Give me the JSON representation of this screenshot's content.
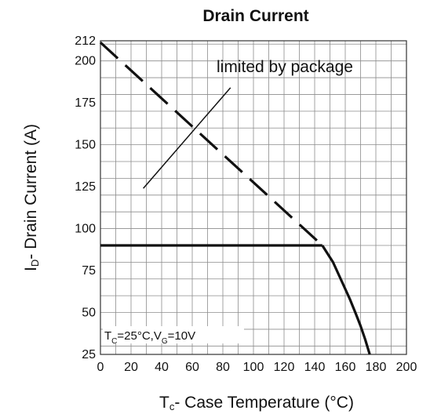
{
  "chart_data": {
    "type": "line",
    "title": "Drain Current",
    "xlabel": "- Case Temperature (°C)",
    "xlabel_symbol": "T",
    "xlabel_sub": "c",
    "ylabel": "- Drain Current (A)",
    "ylabel_symbol": "I",
    "ylabel_sub": "D",
    "xlim": [
      0,
      200
    ],
    "ylim": [
      25,
      212
    ],
    "xticks": [
      "0",
      "20",
      "40",
      "60",
      "80",
      "100",
      "120",
      "140",
      "160",
      "180",
      "200"
    ],
    "yticks": [
      "25",
      "50",
      "75",
      "100",
      "125",
      "150",
      "175",
      "200",
      "212"
    ],
    "grid": true,
    "annotations": {
      "package_limit": "limited by package",
      "conditions": {
        "tc_symbol": "T",
        "tc_sub": "C",
        "tc_value": "=25°C,",
        "vg_symbol": "V",
        "vg_sub": "G",
        "vg_value": "=10V"
      }
    },
    "series": [
      {
        "style": "dashed",
        "x": [
          0,
          145
        ],
        "y": [
          211,
          90
        ]
      },
      {
        "style": "solid",
        "x": [
          0,
          145
        ],
        "y": [
          90,
          90
        ]
      },
      {
        "style": "solid",
        "x": [
          145,
          152,
          158,
          163,
          167,
          170,
          173,
          176
        ],
        "y": [
          90,
          80,
          68,
          58,
          49,
          42,
          34,
          25
        ]
      },
      {
        "style": "solid",
        "x": [
          28,
          85
        ],
        "y": [
          124,
          184
        ]
      }
    ]
  }
}
